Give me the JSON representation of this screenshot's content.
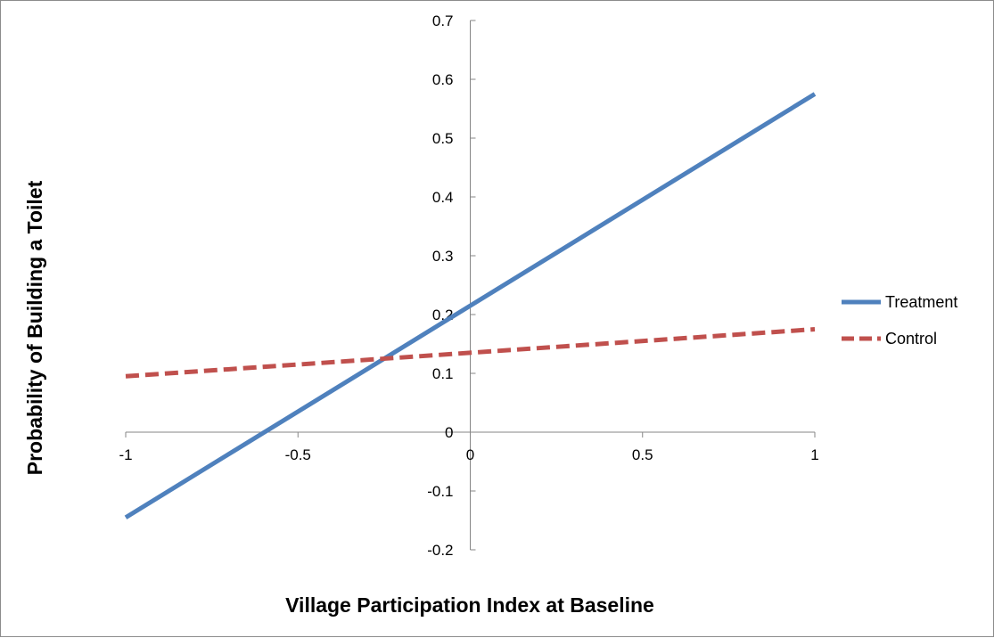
{
  "chart_data": {
    "type": "line",
    "title": "",
    "xlabel": "Village Participation Index at Baseline",
    "ylabel": "Probability of Building a Toilet",
    "xlim": [
      -1,
      1
    ],
    "ylim": [
      -0.2,
      0.7
    ],
    "x_ticks": [
      -1,
      -0.5,
      0,
      0.5,
      1
    ],
    "y_ticks": [
      -0.2,
      -0.1,
      0,
      0.1,
      0.2,
      0.3,
      0.4,
      0.5,
      0.6,
      0.7
    ],
    "x_tick_labels": [
      "-1",
      "-0.5",
      "0",
      "0.5",
      "1"
    ],
    "y_tick_labels": [
      "-0.2",
      "-0.1",
      "0",
      "0.1",
      "0.2",
      "0.3",
      "0.4",
      "0.5",
      "0.6",
      "0.7"
    ],
    "grid": false,
    "legend_position": "right",
    "series": [
      {
        "name": "Treatment",
        "color": "#4f81bd",
        "dash": "solid",
        "x": [
          -1,
          1
        ],
        "y": [
          -0.145,
          0.575
        ]
      },
      {
        "name": "Control",
        "color": "#c0504d",
        "dash": "dashed",
        "x": [
          -1,
          1
        ],
        "y": [
          0.095,
          0.175
        ]
      }
    ]
  }
}
